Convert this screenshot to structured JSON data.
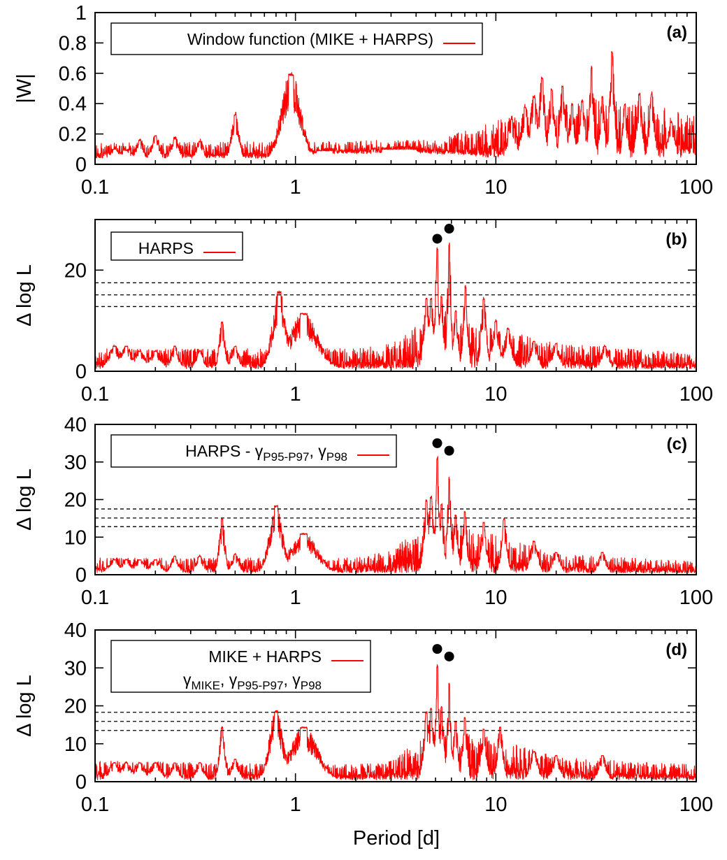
{
  "figure": {
    "xlabel": "Period [d]",
    "colors": {
      "series": "#ff0000",
      "axes": "#000000",
      "background": "#ffffff"
    }
  },
  "chart_data": [
    {
      "type": "line",
      "panel_label": "(a)",
      "ylabel": "|W|",
      "x_scale": "log",
      "xlim": [
        0.1,
        100
      ],
      "ylim": [
        0,
        1
      ],
      "x_ticks": [
        0.1,
        1,
        10,
        100
      ],
      "x_tick_labels": [
        "0.1",
        "1",
        "10",
        "100"
      ],
      "y_ticks": [
        0,
        0.2,
        0.4,
        0.6,
        0.8,
        1
      ],
      "y_tick_labels": [
        "0",
        "0.2",
        "0.4",
        "0.6",
        "0.8",
        "1"
      ],
      "legend": {
        "placement": "top-left",
        "lines": [
          "Window function (MIKE + HARPS)"
        ]
      },
      "significance_levels": [],
      "marked_peaks": [],
      "series": [
        {
          "name": "Window function (MIKE + HARPS)",
          "baseline": 0.04,
          "noise": 0.04,
          "peaks": [
            [
              0.125,
              0.1,
              0.03
            ],
            [
              0.143,
              0.09,
              0.03
            ],
            [
              0.167,
              0.16,
              0.02
            ],
            [
              0.2,
              0.19,
              0.02
            ],
            [
              0.25,
              0.17,
              0.02
            ],
            [
              0.333,
              0.15,
              0.02
            ],
            [
              0.5,
              0.33,
              0.02
            ],
            [
              0.95,
              0.6,
              0.05
            ],
            [
              1.4,
              0.09,
              0.16
            ],
            [
              3.3,
              0.1,
              0.35
            ],
            [
              12,
              0.3,
              0.02
            ],
            [
              14,
              0.38,
              0.02
            ],
            [
              15.5,
              0.45,
              0.02
            ],
            [
              17,
              0.58,
              0.015
            ],
            [
              19,
              0.5,
              0.015
            ],
            [
              21.5,
              0.52,
              0.015
            ],
            [
              24,
              0.4,
              0.015
            ],
            [
              27,
              0.42,
              0.015
            ],
            [
              30,
              0.65,
              0.012
            ],
            [
              34,
              0.45,
              0.012
            ],
            [
              38,
              0.75,
              0.012
            ],
            [
              44,
              0.4,
              0.012
            ],
            [
              52,
              0.47,
              0.015
            ],
            [
              60,
              0.47,
              0.015
            ],
            [
              75,
              0.28,
              0.02
            ],
            [
              90,
              0.1,
              0.02
            ]
          ],
          "envelope": [
            [
              0.1,
              0.1
            ],
            [
              3,
              0.12
            ],
            [
              5,
              0.12
            ],
            [
              10,
              0.25
            ],
            [
              30,
              0.4
            ],
            [
              100,
              0.3
            ]
          ]
        }
      ]
    },
    {
      "type": "line",
      "panel_label": "(b)",
      "ylabel": "Δ log L",
      "x_scale": "log",
      "xlim": [
        0.1,
        100
      ],
      "ylim": [
        0,
        30
      ],
      "x_ticks": [
        0.1,
        1,
        10,
        100
      ],
      "x_tick_labels": [
        "0.1",
        "1",
        "10",
        "100"
      ],
      "y_ticks": [
        0,
        20
      ],
      "y_tick_labels": [
        "0",
        "20"
      ],
      "legend": {
        "placement": "top-left",
        "lines": [
          "HARPS"
        ]
      },
      "significance_levels": [
        12.8,
        15.1,
        17.5
      ],
      "marked_peaks": [
        [
          5.1,
          26.2
        ],
        [
          5.85,
          28.2
        ]
      ],
      "series": [
        {
          "name": "HARPS",
          "baseline": 0.5,
          "noise": 3.5,
          "peaks": [
            [
              0.125,
              5,
              0.03
            ],
            [
              0.143,
              5,
              0.03
            ],
            [
              0.167,
              4,
              0.03
            ],
            [
              0.2,
              4,
              0.03
            ],
            [
              0.25,
              5,
              0.02
            ],
            [
              0.333,
              4,
              0.02
            ],
            [
              0.43,
              9.8,
              0.015
            ],
            [
              0.5,
              5,
              0.02
            ],
            [
              0.83,
              15.8,
              0.035
            ],
            [
              1.1,
              11.5,
              0.07
            ],
            [
              4.5,
              14.5,
              0.015
            ],
            [
              4.75,
              14.5,
              0.015
            ],
            [
              5.1,
              24.5,
              0.01
            ],
            [
              5.35,
              15,
              0.012
            ],
            [
              5.85,
              25.5,
              0.01
            ],
            [
              6.3,
              12,
              0.012
            ],
            [
              7.05,
              17,
              0.012
            ],
            [
              8.7,
              14.5,
              0.015
            ],
            [
              10,
              10,
              0.02
            ],
            [
              11.5,
              8.5,
              0.02
            ],
            [
              15.5,
              6,
              0.02
            ],
            [
              20,
              5.5,
              0.02
            ],
            [
              35,
              5,
              0.02
            ]
          ],
          "envelope": [
            [
              0.1,
              4
            ],
            [
              2,
              4
            ],
            [
              3,
              5
            ],
            [
              5,
              12
            ],
            [
              10,
              8
            ],
            [
              20,
              5
            ],
            [
              100,
              3
            ]
          ]
        }
      ]
    },
    {
      "type": "line",
      "panel_label": "(c)",
      "ylabel": "Δ log L",
      "x_scale": "log",
      "xlim": [
        0.1,
        100
      ],
      "ylim": [
        0,
        40
      ],
      "x_ticks": [
        0.1,
        1,
        10,
        100
      ],
      "x_tick_labels": [
        "0.1",
        "1",
        "10",
        "100"
      ],
      "y_ticks": [
        0,
        10,
        20,
        30,
        40
      ],
      "y_tick_labels": [
        "0",
        "10",
        "20",
        "30",
        "40"
      ],
      "legend": {
        "placement": "top-left",
        "lines": [
          "HARPS - γP95-P97, γP98"
        ]
      },
      "significance_levels": [
        12.8,
        15.1,
        17.5
      ],
      "marked_peaks": [
        [
          5.1,
          35
        ],
        [
          5.85,
          33
        ]
      ],
      "series": [
        {
          "name": "HARPS - γP95-P97, γP98",
          "baseline": 0.5,
          "noise": 3,
          "peaks": [
            [
              0.125,
              4,
              0.03
            ],
            [
              0.143,
              4,
              0.03
            ],
            [
              0.167,
              4,
              0.03
            ],
            [
              0.2,
              4,
              0.03
            ],
            [
              0.25,
              5,
              0.02
            ],
            [
              0.333,
              5,
              0.02
            ],
            [
              0.43,
              15,
              0.015
            ],
            [
              0.5,
              5.5,
              0.02
            ],
            [
              0.8,
              18.5,
              0.035
            ],
            [
              1.1,
              11,
              0.07
            ],
            [
              4.5,
              20,
              0.015
            ],
            [
              4.75,
              21,
              0.015
            ],
            [
              5.1,
              31.5,
              0.01
            ],
            [
              5.35,
              19,
              0.012
            ],
            [
              5.85,
              26,
              0.01
            ],
            [
              6.3,
              16,
              0.012
            ],
            [
              7,
              17,
              0.012
            ],
            [
              8.7,
              14,
              0.015
            ],
            [
              11,
              15,
              0.015
            ],
            [
              15.5,
              9,
              0.02
            ],
            [
              20,
              6,
              0.02
            ],
            [
              34,
              6,
              0.02
            ]
          ],
          "envelope": [
            [
              0.1,
              4
            ],
            [
              2,
              4
            ],
            [
              3,
              6
            ],
            [
              5,
              15
            ],
            [
              10,
              10
            ],
            [
              20,
              5
            ],
            [
              100,
              3
            ]
          ]
        }
      ]
    },
    {
      "type": "line",
      "panel_label": "(d)",
      "ylabel": "Δ log L",
      "x_scale": "log",
      "xlim": [
        0.1,
        100
      ],
      "ylim": [
        0,
        40
      ],
      "x_ticks": [
        0.1,
        1,
        10,
        100
      ],
      "x_tick_labels": [
        "0.1",
        "1",
        "10",
        "100"
      ],
      "y_ticks": [
        0,
        10,
        20,
        30,
        40
      ],
      "y_tick_labels": [
        "0",
        "10",
        "20",
        "30",
        "40"
      ],
      "legend": {
        "placement": "top-left",
        "lines": [
          "MIKE + HARPS",
          "γMIKE, γP95-P97, γP98"
        ]
      },
      "significance_levels": [
        13.5,
        15.9,
        18.3
      ],
      "marked_peaks": [
        [
          5.1,
          35
        ],
        [
          5.85,
          33
        ]
      ],
      "series": [
        {
          "name": "MIKE + HARPS γMIKE, γP95-P97, γP98",
          "baseline": 0.5,
          "noise": 3.5,
          "peaks": [
            [
              0.125,
              5,
              0.03
            ],
            [
              0.143,
              5,
              0.03
            ],
            [
              0.167,
              5,
              0.03
            ],
            [
              0.2,
              5,
              0.03
            ],
            [
              0.25,
              5,
              0.02
            ],
            [
              0.333,
              5,
              0.02
            ],
            [
              0.43,
              14.5,
              0.015
            ],
            [
              0.5,
              6,
              0.02
            ],
            [
              0.8,
              18.8,
              0.035
            ],
            [
              1.1,
              14.5,
              0.07
            ],
            [
              4.5,
              18.5,
              0.015
            ],
            [
              4.75,
              19.5,
              0.015
            ],
            [
              5.1,
              31,
              0.01
            ],
            [
              5.35,
              20,
              0.012
            ],
            [
              5.85,
              26,
              0.01
            ],
            [
              6.3,
              16,
              0.012
            ],
            [
              7,
              17,
              0.012
            ],
            [
              8.7,
              14,
              0.015
            ],
            [
              10.5,
              14.5,
              0.015
            ],
            [
              15.5,
              8,
              0.02
            ],
            [
              20,
              7,
              0.02
            ],
            [
              34,
              7,
              0.02
            ]
          ],
          "envelope": [
            [
              0.1,
              5
            ],
            [
              2,
              4
            ],
            [
              3,
              5
            ],
            [
              5,
              14
            ],
            [
              10,
              11
            ],
            [
              20,
              6
            ],
            [
              100,
              4
            ]
          ]
        }
      ]
    }
  ]
}
